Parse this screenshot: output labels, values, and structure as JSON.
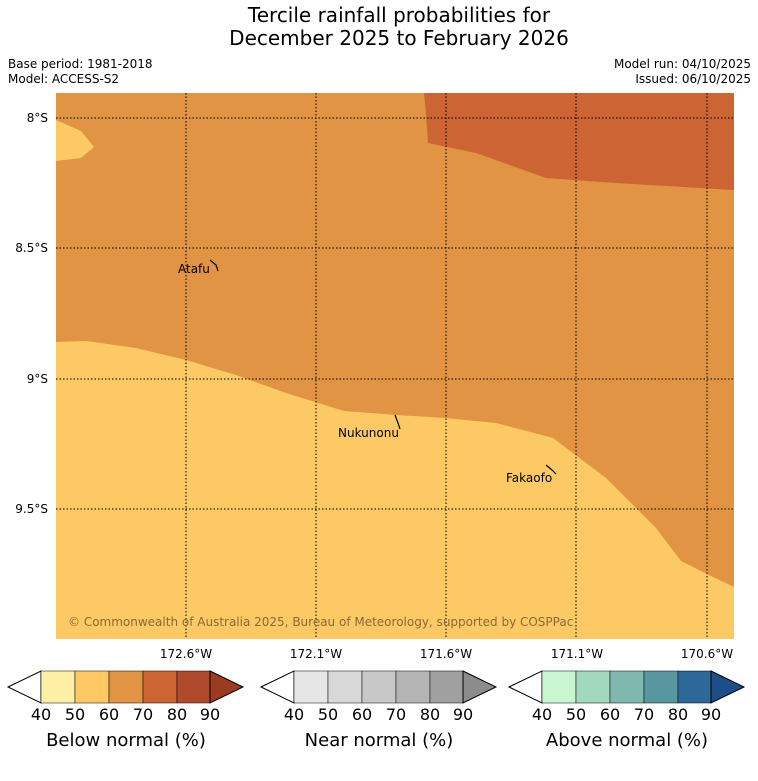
{
  "title": {
    "line1": "Tercile rainfall probabilities for",
    "line2": "December 2025 to February 2026"
  },
  "meta": {
    "base_period": "Base period: 1981-2018",
    "model": "Model: ACCESS-S2",
    "model_run": "Model run: 04/10/2025",
    "issued": "Issued: 06/10/2025"
  },
  "map": {
    "lat_labels": [
      "8°S",
      "8.5°S",
      "9°S",
      "9.5°S"
    ],
    "lon_labels": [
      "172.6°W",
      "172.1°W",
      "171.6°W",
      "171.1°W",
      "170.6°W"
    ],
    "places": {
      "atafu": "Atafu",
      "nukunonu": "Nukunonu",
      "fakaofo": "Fakaofo"
    },
    "copyright": "© Commonwealth of Australia 2025, Bureau of Meteorology, supported by COSPPac",
    "colors": {
      "below_50": "#fdc964",
      "below_60": "#e09444",
      "below_70": "#cc6433"
    }
  },
  "colorbars": {
    "below": {
      "label": "Below normal (%)",
      "ticks": [
        "40",
        "50",
        "60",
        "70",
        "80",
        "90"
      ],
      "colors": [
        "#ffffff",
        "#fdf0a4",
        "#fdc964",
        "#e09444",
        "#cc6433",
        "#b04a2c",
        "#9a3b22"
      ]
    },
    "near": {
      "label": "Near normal (%)",
      "ticks": [
        "40",
        "50",
        "60",
        "70",
        "80",
        "90"
      ],
      "colors": [
        "#ffffff",
        "#e6e6e6",
        "#d8d8d8",
        "#c8c8c8",
        "#b4b4b4",
        "#a0a0a0",
        "#8c8c8c"
      ]
    },
    "above": {
      "label": "Above normal (%)",
      "ticks": [
        "40",
        "50",
        "60",
        "70",
        "80",
        "90"
      ],
      "colors": [
        "#ffffff",
        "#c8f6d0",
        "#a2d8bc",
        "#80b8b0",
        "#5896a0",
        "#2e6898",
        "#1e4e88"
      ]
    }
  }
}
